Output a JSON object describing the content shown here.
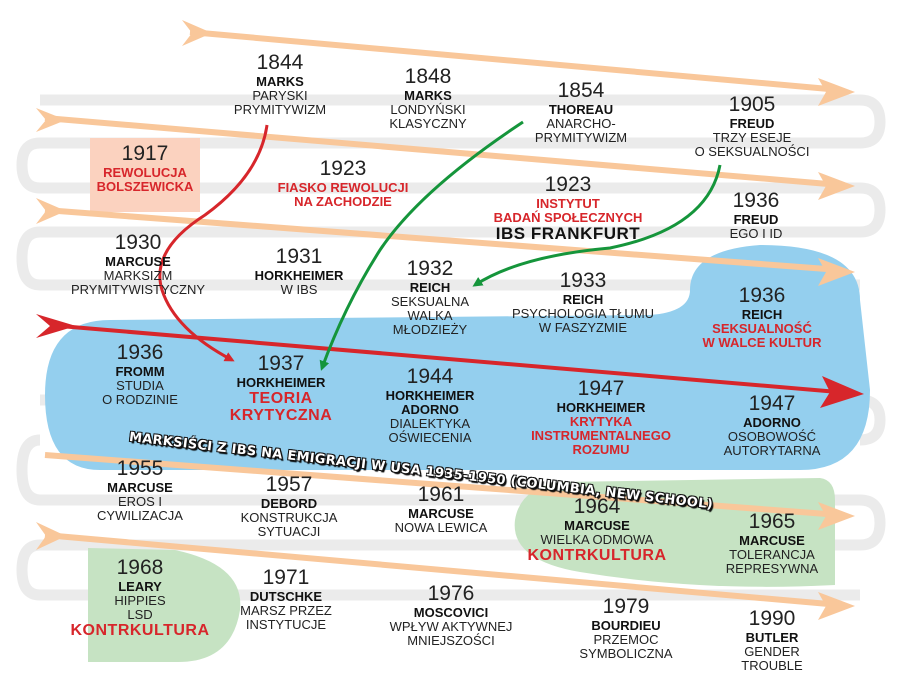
{
  "nodes": [
    {
      "id": "n1844",
      "year": "1844",
      "name": "MARKS",
      "lines": [
        "PARYSKI",
        "PRYMITYWIZM"
      ]
    },
    {
      "id": "n1848",
      "year": "1848",
      "name": "MARKS",
      "lines": [
        "LONDYŃSKI",
        "KLASYCZNY"
      ]
    },
    {
      "id": "n1854",
      "year": "1854",
      "name": "THOREAU",
      "lines": [
        "ANARCHO-",
        "PRYMITYWIZM"
      ]
    },
    {
      "id": "n1905",
      "year": "1905",
      "name": "FREUD",
      "lines": [
        "TRZY ESEJE",
        "O SEKSUALNOŚCI"
      ]
    },
    {
      "id": "n1917",
      "year": "1917",
      "name": "",
      "lines": [
        "REWOLUCJA",
        "BOLSZEWICKA"
      ]
    },
    {
      "id": "n1923a",
      "year": "1923",
      "name": "",
      "lines": [
        "FIASKO REWOLUCJI",
        "NA ZACHODZIE"
      ]
    },
    {
      "id": "n1923b",
      "year": "1923",
      "name": "",
      "lines": [
        "INSTYTUT",
        "BADAŃ SPOŁECZNYCH",
        "IBS FRANKFURT"
      ]
    },
    {
      "id": "n1936a",
      "year": "1936",
      "name": "FREUD",
      "lines": [
        "EGO I ID"
      ]
    },
    {
      "id": "n1930",
      "year": "1930",
      "name": "MARCUSE",
      "lines": [
        "MARKSIZM",
        "PRYMITYWISTYCZNY"
      ]
    },
    {
      "id": "n1931",
      "year": "1931",
      "name": "HORKHEIMER",
      "lines": [
        "W IBS"
      ]
    },
    {
      "id": "n1932",
      "year": "1932",
      "name": "REICH",
      "lines": [
        "SEKSUALNA",
        "WALKA",
        "MŁODZIEŻY"
      ]
    },
    {
      "id": "n1933",
      "year": "1933",
      "name": "REICH",
      "lines": [
        "PSYCHOLOGIA TŁUMU",
        "W FASZYZMIE"
      ]
    },
    {
      "id": "n1936b",
      "year": "1936",
      "name": "REICH",
      "lines": [
        "SEKSUALNOŚĆ",
        "W WALCE KULTUR"
      ]
    },
    {
      "id": "n1936c",
      "year": "1936",
      "name": "FROMM",
      "lines": [
        "STUDIA",
        "O RODZINIE"
      ]
    },
    {
      "id": "n1937",
      "year": "1937",
      "name": "HORKHEIMER",
      "lines": [
        "TEORIA",
        "KRYTYCZNA"
      ]
    },
    {
      "id": "n1944",
      "year": "1944",
      "name": "HORKHEIMER",
      "lines": [
        "ADORNO",
        "DIALEKTYKA",
        "OŚWIECENIA"
      ]
    },
    {
      "id": "n1947a",
      "year": "1947",
      "name": "HORKHEIMER",
      "lines": [
        "KRYTYKA",
        "INSTRUMENTALNEGO",
        "ROZUMU"
      ]
    },
    {
      "id": "n1947b",
      "year": "1947",
      "name": "ADORNO",
      "lines": [
        "OSOBOWOŚĆ",
        "AUTORYTARNA"
      ]
    },
    {
      "id": "n1955",
      "year": "1955",
      "name": "MARCUSE",
      "lines": [
        "EROS I",
        "CYWILIZACJA"
      ]
    },
    {
      "id": "n1957",
      "year": "1957",
      "name": "DEBORD",
      "lines": [
        "KONSTRUKCJA",
        "SYTUACJI"
      ]
    },
    {
      "id": "n1961",
      "year": "1961",
      "name": "MARCUSE",
      "lines": [
        "NOWA LEWICA"
      ]
    },
    {
      "id": "n1964",
      "year": "1964",
      "name": "MARCUSE",
      "lines": [
        "WIELKA ODMOWA",
        "KONTRKULTURA"
      ]
    },
    {
      "id": "n1965",
      "year": "1965",
      "name": "MARCUSE",
      "lines": [
        "TOLERANCJA",
        "REPRESYWNA"
      ]
    },
    {
      "id": "n1968",
      "year": "1968",
      "name": "LEARY",
      "lines": [
        "HIPPIES",
        "LSD",
        "KONTRKULTURA"
      ]
    },
    {
      "id": "n1971",
      "year": "1971",
      "name": "DUTSCHKE",
      "lines": [
        "MARSZ PRZEZ",
        "INSTYTUCJE"
      ]
    },
    {
      "id": "n1976",
      "year": "1976",
      "name": "MOSCOVICI",
      "lines": [
        "WPŁYW AKTYWNEJ",
        "MNIEJSZOŚCI"
      ]
    },
    {
      "id": "n1979",
      "year": "1979",
      "name": "BOURDIEU",
      "lines": [
        "PRZEMOC",
        "SYMBOLICZNA"
      ]
    },
    {
      "id": "n1990",
      "year": "1990",
      "name": "BUTLER",
      "lines": [
        "GENDER",
        "TROUBLE"
      ]
    }
  ],
  "banner": "MARKSIŚCI Z IBS NA EMIGRACJI W USA 1935-1950 (COLUMBIA, NEW SCHOOL)",
  "colors": {
    "track_arrow": "#f9c79a",
    "track_line": "#ebebeb",
    "region_blue": "#94cfee",
    "region_green": "#c6e3c3",
    "region_peach": "#fbd2bf",
    "accent_red": "#d7262b",
    "accent_green": "#15953b"
  }
}
